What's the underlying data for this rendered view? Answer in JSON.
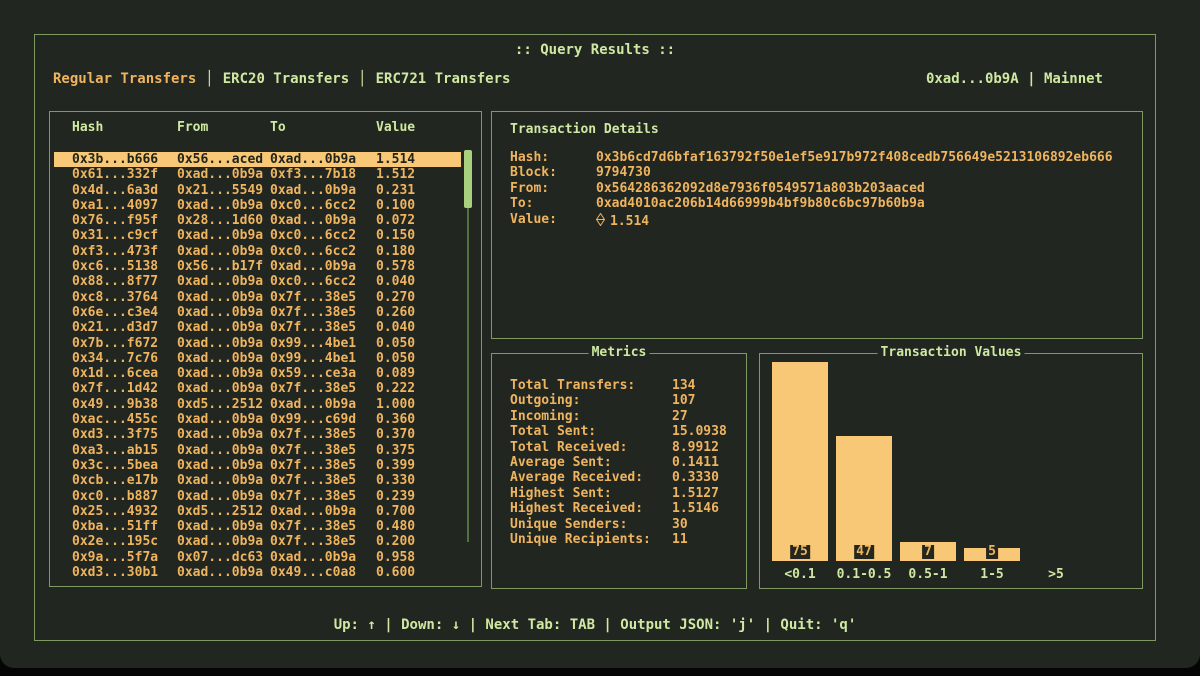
{
  "window": {
    "title": ":: Query Results ::",
    "wallet": "0xad...0b9A",
    "separator": "|",
    "network": "Mainnet"
  },
  "tab_separator": "│",
  "tabs": [
    {
      "label": "Regular Transfers",
      "active": true
    },
    {
      "label": "ERC20 Transfers",
      "active": false
    },
    {
      "label": "ERC721 Transfers",
      "active": false
    }
  ],
  "table": {
    "columns": [
      "Hash",
      "From",
      "To",
      "Value"
    ],
    "selected_index": 0,
    "rows": [
      [
        "0x3b...b666",
        "0x56...aced",
        "0xad...0b9a",
        "1.514"
      ],
      [
        "0x61...332f",
        "0xad...0b9a",
        "0xf3...7b18",
        "1.512"
      ],
      [
        "0x4d...6a3d",
        "0x21...5549",
        "0xad...0b9a",
        "0.231"
      ],
      [
        "0xa1...4097",
        "0xad...0b9a",
        "0xc0...6cc2",
        "0.100"
      ],
      [
        "0x76...f95f",
        "0x28...1d60",
        "0xad...0b9a",
        "0.072"
      ],
      [
        "0x31...c9cf",
        "0xad...0b9a",
        "0xc0...6cc2",
        "0.150"
      ],
      [
        "0xf3...473f",
        "0xad...0b9a",
        "0xc0...6cc2",
        "0.180"
      ],
      [
        "0xc6...5138",
        "0x56...b17f",
        "0xad...0b9a",
        "0.578"
      ],
      [
        "0x88...8f77",
        "0xad...0b9a",
        "0xc0...6cc2",
        "0.040"
      ],
      [
        "0xc8...3764",
        "0xad...0b9a",
        "0x7f...38e5",
        "0.270"
      ],
      [
        "0x6e...c3e4",
        "0xad...0b9a",
        "0x7f...38e5",
        "0.260"
      ],
      [
        "0x21...d3d7",
        "0xad...0b9a",
        "0x7f...38e5",
        "0.040"
      ],
      [
        "0x7b...f672",
        "0xad...0b9a",
        "0x99...4be1",
        "0.050"
      ],
      [
        "0x34...7c76",
        "0xad...0b9a",
        "0x99...4be1",
        "0.050"
      ],
      [
        "0x1d...6cea",
        "0xad...0b9a",
        "0x59...ce3a",
        "0.089"
      ],
      [
        "0x7f...1d42",
        "0xad...0b9a",
        "0x7f...38e5",
        "0.222"
      ],
      [
        "0x49...9b38",
        "0xd5...2512",
        "0xad...0b9a",
        "1.000"
      ],
      [
        "0xac...455c",
        "0xad...0b9a",
        "0x99...c69d",
        "0.360"
      ],
      [
        "0xd3...3f75",
        "0xad...0b9a",
        "0x7f...38e5",
        "0.370"
      ],
      [
        "0xa3...ab15",
        "0xad...0b9a",
        "0x7f...38e5",
        "0.375"
      ],
      [
        "0x3c...5bea",
        "0xad...0b9a",
        "0x7f...38e5",
        "0.399"
      ],
      [
        "0xcb...e17b",
        "0xad...0b9a",
        "0x7f...38e5",
        "0.330"
      ],
      [
        "0xc0...b887",
        "0xad...0b9a",
        "0x7f...38e5",
        "0.239"
      ],
      [
        "0x25...4932",
        "0xd5...2512",
        "0xad...0b9a",
        "0.700"
      ],
      [
        "0xba...51ff",
        "0xad...0b9a",
        "0x7f...38e5",
        "0.480"
      ],
      [
        "0x2e...195c",
        "0xad...0b9a",
        "0x7f...38e5",
        "0.200"
      ],
      [
        "0x9a...5f7a",
        "0x07...dc63",
        "0xad...0b9a",
        "0.958"
      ],
      [
        "0xd3...30b1",
        "0xad...0b9a",
        "0x49...c0a8",
        "0.600"
      ]
    ]
  },
  "details": {
    "title": "Transaction Details",
    "fields": [
      {
        "label": "Hash:",
        "value": "0x3b6cd7d6bfaf163792f50e1ef5e917b972f408cedb756649e5213106892eb666"
      },
      {
        "label": "Block:",
        "value": "9794730"
      },
      {
        "label": "From:",
        "value": "0x564286362092d8e7936f0549571a803b203aaced"
      },
      {
        "label": "To:",
        "value": "0xad4010ac206b14d66999b4bf9b80c6bc97b60b9a"
      },
      {
        "label": "Value:",
        "value": "1.514",
        "icon": "eth-diamond"
      }
    ]
  },
  "metrics": {
    "title": "Metrics",
    "items": [
      {
        "label": "Total Transfers:",
        "value": "134"
      },
      {
        "label": "Outgoing:",
        "value": "107"
      },
      {
        "label": "Incoming:",
        "value": "27"
      },
      {
        "label": "Total Sent:",
        "value": "15.0938"
      },
      {
        "label": "Total Received:",
        "value": "8.9912"
      },
      {
        "label": "Average Sent:",
        "value": "0.1411"
      },
      {
        "label": "Average Received:",
        "value": "0.3330"
      },
      {
        "label": "Highest Sent:",
        "value": "1.5127"
      },
      {
        "label": "Highest Received:",
        "value": "1.5146"
      },
      {
        "label": "Unique Senders:",
        "value": "30"
      },
      {
        "label": "Unique Recipients:",
        "value": "11"
      }
    ]
  },
  "chart_data": {
    "type": "bar",
    "title": "Transaction Values",
    "categories": [
      "<0.1",
      "0.1-0.5",
      "0.5-1",
      "1-5",
      ">5"
    ],
    "values": [
      75,
      47,
      7,
      5,
      0
    ],
    "xlabel": "",
    "ylabel": "",
    "ylim": [
      0,
      75
    ],
    "bar_color": "#f8c876",
    "legend_position": "top-center"
  },
  "footer": {
    "text": "Up: ↑ | Down: ↓ | Next Tab: TAB | Output JSON: 'j' | Quit: 'q'"
  },
  "colors": {
    "bg": "#222621",
    "border": "#7e9a62",
    "green": "#cfe9a2",
    "orange": "#efb45e",
    "hl-bg": "#f8c876",
    "hl-fg": "#20241a",
    "thumb": "#a8d07e",
    "track": "#55703f",
    "notch": "#23271d"
  }
}
